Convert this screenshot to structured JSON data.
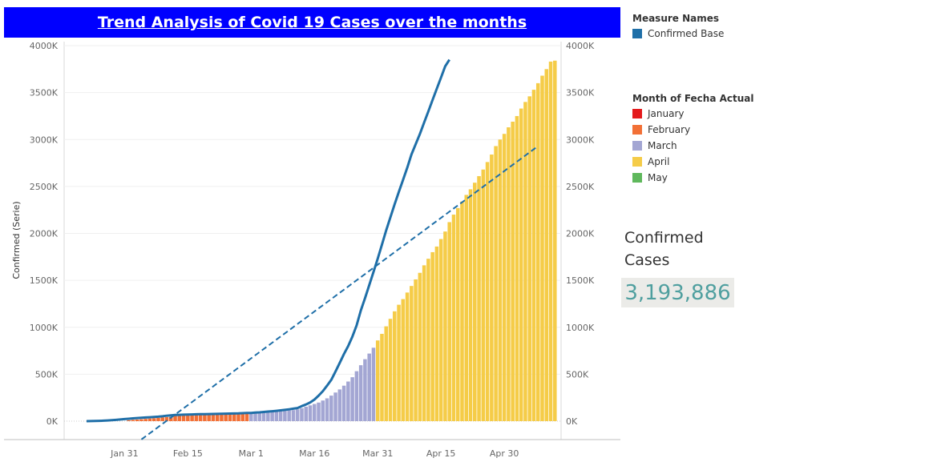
{
  "title": "Trend Analysis of Covid 19 Cases over the months",
  "legend_measure": {
    "title": "Measure Names",
    "items": [
      {
        "label": "Confirmed Base",
        "color": "#1f6fa8"
      }
    ]
  },
  "legend_month": {
    "title": "Month of Fecha Actual",
    "items": [
      {
        "label": "January",
        "color": "#e41a1c"
      },
      {
        "label": "February",
        "color": "#f27036"
      },
      {
        "label": "March",
        "color": "#a3a6d3"
      },
      {
        "label": "April",
        "color": "#f5cc48"
      },
      {
        "label": "May",
        "color": "#5fb85c"
      }
    ]
  },
  "kpi": {
    "label": "Confirmed Cases",
    "value": "3,193,886"
  },
  "chart_data": {
    "type": "bar",
    "ylabel": "Confirmed (Serie)",
    "ylim": [
      0,
      4000
    ],
    "y_ticks": [
      "0K",
      "500K",
      "1000K",
      "1500K",
      "2000K",
      "2500K",
      "3000K",
      "3500K",
      "4000K"
    ],
    "y_tick_values": [
      0,
      500,
      1000,
      1500,
      2000,
      2500,
      3000,
      3500,
      4000
    ],
    "x_ticks": [
      "Jan 31",
      "Feb 15",
      "Mar 1",
      "Mar 16",
      "Mar 31",
      "Apr 15",
      "Apr 30"
    ],
    "x_tick_day_index": [
      9,
      24,
      39,
      54,
      69,
      84,
      99
    ],
    "grid": true,
    "bar_series": [
      {
        "month": "February",
        "color": "#f27036",
        "start_day": 10,
        "values": [
          10,
          14,
          17,
          20,
          24,
          28,
          31,
          35,
          40,
          43,
          45,
          60,
          64,
          67,
          69,
          71,
          73,
          75,
          75,
          76,
          76,
          77,
          79,
          79,
          79,
          80,
          80,
          82,
          83
        ]
      },
      {
        "month": "March",
        "color": "#a3a6d3",
        "start_day": 39,
        "values": [
          85,
          88,
          91,
          93,
          96,
          98,
          102,
          106,
          110,
          115,
          118,
          126,
          138,
          154,
          168,
          183,
          198,
          220,
          243,
          272,
          305,
          338,
          378,
          422,
          468,
          532,
          596,
          660,
          720,
          782
        ]
      },
      {
        "month": "April",
        "color": "#f5cc48",
        "start_day": 69,
        "values": [
          860,
          930,
          1010,
          1090,
          1170,
          1240,
          1300,
          1370,
          1440,
          1510,
          1580,
          1660,
          1730,
          1800,
          1860,
          1940,
          2020,
          2120,
          2200,
          2270,
          2340,
          2410,
          2470,
          2540,
          2610,
          2680,
          2760,
          2840,
          2930,
          3000,
          3060,
          3130,
          3190,
          3250,
          3330,
          3400,
          3460,
          3530,
          3600,
          3680,
          3750,
          3830,
          3840
        ]
      }
    ],
    "line": {
      "name": "Confirmed Base",
      "color": "#1f6fa8",
      "start_day": 0,
      "values": [
        0,
        1,
        2,
        3,
        5,
        8,
        10,
        14,
        18,
        22,
        26,
        30,
        33,
        36,
        39,
        42,
        45,
        48,
        52,
        58,
        62,
        66,
        67,
        69,
        70,
        72,
        73,
        74,
        75,
        76,
        77,
        78,
        79,
        80,
        81,
        82,
        83,
        85,
        87,
        88,
        91,
        94,
        98,
        102,
        106,
        110,
        115,
        120,
        126,
        133,
        140,
        160,
        177,
        200,
        230,
        272,
        320,
        378,
        440,
        530,
        620,
        715,
        800,
        900,
        1020,
        1180,
        1310,
        1450,
        1590,
        1730,
        1880,
        2030,
        2170,
        2310,
        2440,
        2570,
        2700,
        2840,
        2950,
        3060,
        3180,
        3300,
        3420,
        3540,
        3660,
        3780,
        3850
      ]
    },
    "trend_line": {
      "type": "linear",
      "start": [
        13,
        -195
      ],
      "end": [
        107,
        2930
      ]
    }
  }
}
